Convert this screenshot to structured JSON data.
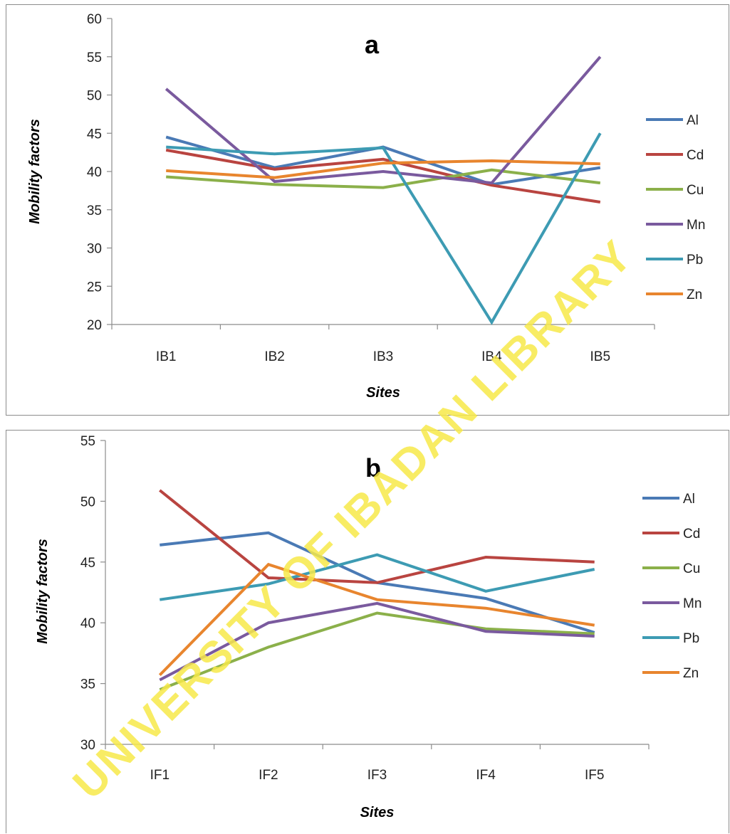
{
  "watermark": {
    "text": "UNIVERSITY OF IBADAN LIBRARY",
    "color": "#f5e63a"
  },
  "chart_data": [
    {
      "type": "line",
      "title": "a",
      "xlabel": "Sites",
      "ylabel": "Mobility factors",
      "ylim": [
        20,
        60
      ],
      "yticks": [
        20,
        25,
        30,
        35,
        40,
        45,
        50,
        55,
        60
      ],
      "categories": [
        "IB1",
        "IB2",
        "IB3",
        "IB4",
        "IB5"
      ],
      "legend_position": "right",
      "grid": false,
      "series": [
        {
          "name": "Al",
          "color": "#4a7ab5",
          "values": [
            44.5,
            40.5,
            43.2,
            38.3,
            40.5
          ]
        },
        {
          "name": "Cd",
          "color": "#b94440",
          "values": [
            42.8,
            40.3,
            41.6,
            38.2,
            36.0
          ]
        },
        {
          "name": "Cu",
          "color": "#8bb04a",
          "values": [
            39.3,
            38.3,
            37.9,
            40.2,
            38.5
          ]
        },
        {
          "name": "Mn",
          "color": "#7a5a9e",
          "values": [
            50.8,
            38.7,
            40.0,
            38.5,
            55.0
          ]
        },
        {
          "name": "Pb",
          "color": "#3d9bb3",
          "values": [
            43.2,
            42.3,
            43.1,
            20.3,
            45.0
          ]
        },
        {
          "name": "Zn",
          "color": "#e8852e",
          "values": [
            40.1,
            39.2,
            41.1,
            41.4,
            41.0
          ]
        }
      ]
    },
    {
      "type": "line",
      "title": "b",
      "xlabel": "Sites",
      "ylabel": "Mobility factors",
      "ylim": [
        30,
        55
      ],
      "yticks": [
        30,
        35,
        40,
        45,
        50,
        55
      ],
      "categories": [
        "IF1",
        "IF2",
        "IF3",
        "IF4",
        "IF5"
      ],
      "legend_position": "right",
      "grid": false,
      "series": [
        {
          "name": "Al",
          "color": "#4a7ab5",
          "values": [
            46.4,
            47.4,
            43.3,
            42.0,
            39.2
          ]
        },
        {
          "name": "Cd",
          "color": "#b94440",
          "values": [
            50.9,
            43.7,
            43.3,
            45.4,
            45.0
          ]
        },
        {
          "name": "Cu",
          "color": "#8bb04a",
          "values": [
            34.5,
            38.0,
            40.8,
            39.5,
            39.1
          ]
        },
        {
          "name": "Mn",
          "color": "#7a5a9e",
          "values": [
            35.3,
            40.0,
            41.6,
            39.3,
            38.9
          ]
        },
        {
          "name": "Pb",
          "color": "#3d9bb3",
          "values": [
            41.9,
            43.2,
            45.6,
            42.6,
            44.4
          ]
        },
        {
          "name": "Zn",
          "color": "#e8852e",
          "values": [
            35.7,
            44.8,
            41.9,
            41.2,
            39.8
          ]
        }
      ]
    }
  ]
}
